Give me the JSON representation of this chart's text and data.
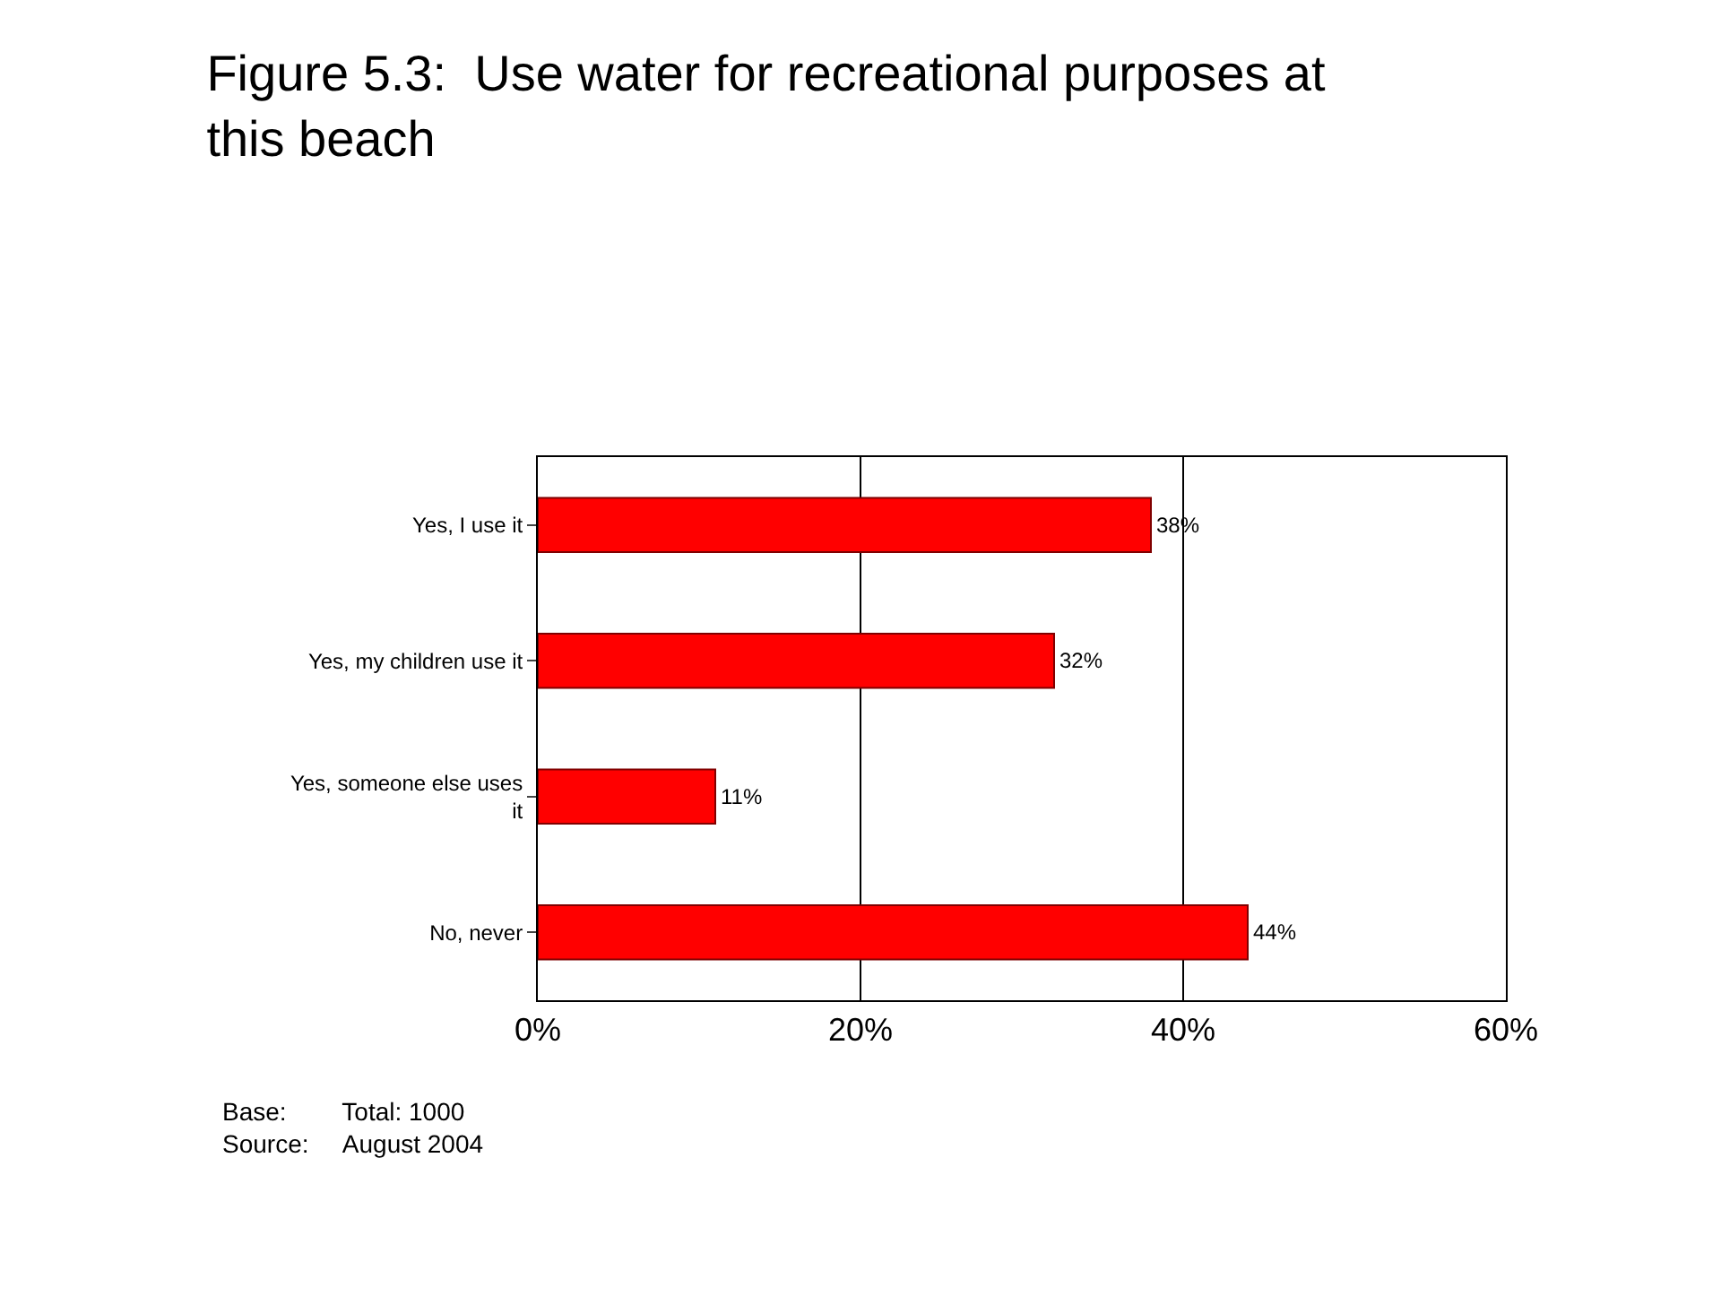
{
  "chart_data": {
    "type": "bar",
    "orientation": "horizontal",
    "title": "Figure 5.3:  Use water for recreational purposes at\nthis beach",
    "categories": [
      "Yes, I use it",
      "Yes, my children use it",
      "Yes, someone else uses\nit",
      "No, never"
    ],
    "values": [
      38,
      32,
      11,
      44
    ],
    "value_labels": [
      "38%",
      "32%",
      "11%",
      "44%"
    ],
    "color": "#ff0000",
    "xlim": [
      0,
      60
    ],
    "xticks": [
      {
        "value": 0,
        "label": "0%"
      },
      {
        "value": 20,
        "label": "20%"
      },
      {
        "value": 40,
        "label": "40%"
      },
      {
        "value": 60,
        "label": "60%"
      }
    ],
    "grid": "x",
    "annotations": [
      "Base:        Total: 1000",
      "Source:     August 2004"
    ]
  }
}
